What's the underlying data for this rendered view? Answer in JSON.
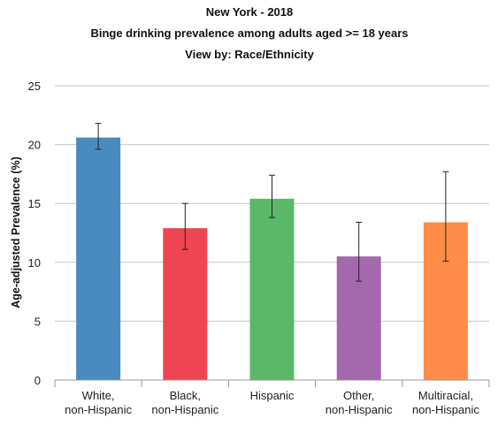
{
  "chart_data": {
    "type": "bar",
    "title_lines": [
      "New York - 2018",
      "Binge drinking prevalence among adults aged >= 18 years",
      "View by: Race/Ethnicity"
    ],
    "xlabel": "",
    "ylabel": "Age-adjusted Prevalence (%)",
    "ylim": [
      0,
      25
    ],
    "yticks": [
      "0",
      "5",
      "10",
      "15",
      "20",
      "25"
    ],
    "grid": true,
    "categories": [
      [
        "White,",
        "non-Hispanic"
      ],
      [
        "Black,",
        "non-Hispanic"
      ],
      [
        "Hispanic"
      ],
      [
        "Other,",
        "non-Hispanic"
      ],
      [
        "Multiracial,",
        "non-Hispanic"
      ]
    ],
    "values": [
      20.6,
      12.9,
      15.4,
      10.5,
      13.4
    ],
    "error_low": [
      19.6,
      11.1,
      13.8,
      8.4,
      10.1
    ],
    "error_high": [
      21.8,
      15.0,
      17.4,
      13.4,
      17.7
    ],
    "colors": [
      "#4a8bbf",
      "#ef4550",
      "#5bb868",
      "#a468ad",
      "#ff8c48"
    ]
  }
}
